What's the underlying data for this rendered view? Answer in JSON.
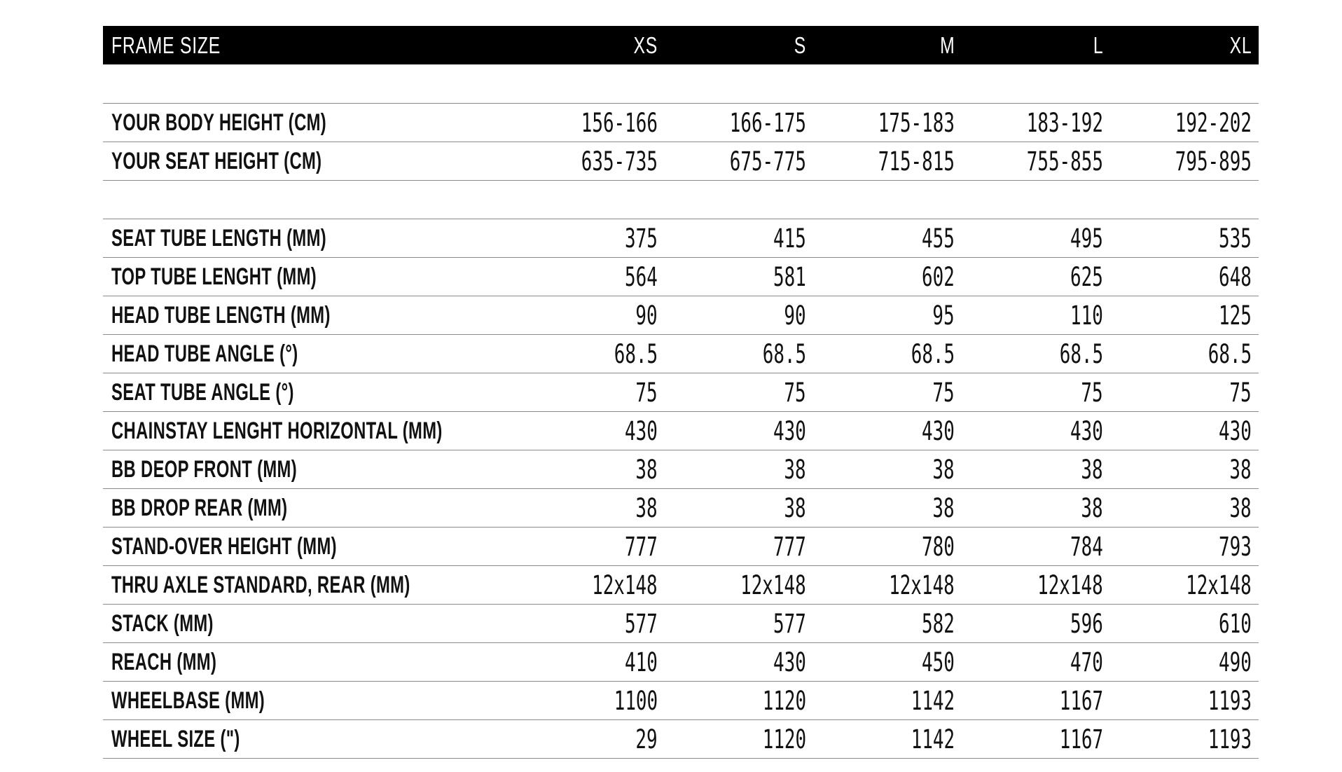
{
  "header": {
    "title": "FRAME SIZE",
    "columns": [
      "XS",
      "S",
      "M",
      "L",
      "XL"
    ],
    "bg_color": "#000000",
    "fg_color": "#ffffff"
  },
  "table": {
    "line_color": "#8a8a8a",
    "sections": [
      {
        "name": "rider-fit",
        "rows": [
          {
            "label": "YOUR BODY HEIGHT (CM)",
            "values": [
              "156-166",
              "166-175",
              "175-183",
              "183-192",
              "192-202"
            ]
          },
          {
            "label": "YOUR SEAT HEIGHT (CM)",
            "values": [
              "635-735",
              "675-775",
              "715-815",
              "755-855",
              "795-895"
            ]
          }
        ]
      },
      {
        "name": "frame-geometry",
        "rows": [
          {
            "label": "SEAT TUBE LENGTH (MM)",
            "values": [
              "375",
              "415",
              "455",
              "495",
              "535"
            ]
          },
          {
            "label": "TOP TUBE LENGHT (MM)",
            "values": [
              "564",
              "581",
              "602",
              "625",
              "648"
            ]
          },
          {
            "label": "HEAD TUBE LENGTH (MM)",
            "values": [
              "90",
              "90",
              "95",
              "110",
              "125"
            ]
          },
          {
            "label": "HEAD TUBE ANGLE (°)",
            "values": [
              "68.5",
              "68.5",
              "68.5",
              "68.5",
              "68.5"
            ]
          },
          {
            "label": "SEAT TUBE ANGLE (°)",
            "values": [
              "75",
              "75",
              "75",
              "75",
              "75"
            ]
          },
          {
            "label": "CHAINSTAY LENGHT HORIZONTAL (MM)",
            "values": [
              "430",
              "430",
              "430",
              "430",
              "430"
            ]
          },
          {
            "label": "BB DEOP FRONT (MM)",
            "values": [
              "38",
              "38",
              "38",
              "38",
              "38"
            ]
          },
          {
            "label": "BB DROP REAR (MM)",
            "values": [
              "38",
              "38",
              "38",
              "38",
              "38"
            ]
          },
          {
            "label": "STAND-OVER HEIGHT (MM)",
            "values": [
              "777",
              "777",
              "780",
              "784",
              "793"
            ]
          },
          {
            "label": "THRU AXLE STANDARD, REAR (MM)",
            "values": [
              "12x148",
              "12x148",
              "12x148",
              "12x148",
              "12x148"
            ]
          },
          {
            "label": "STACK (MM)",
            "values": [
              "577",
              "577",
              "582",
              "596",
              "610"
            ]
          },
          {
            "label": "REACH (MM)",
            "values": [
              "410",
              "430",
              "450",
              "470",
              "490"
            ]
          },
          {
            "label": "WHEELBASE (MM)",
            "values": [
              "1100",
              "1120",
              "1142",
              "1167",
              "1193"
            ]
          },
          {
            "label": "WHEEL SIZE (\")",
            "values": [
              "29",
              "1120",
              "1142",
              "1167",
              "1193"
            ]
          }
        ]
      }
    ]
  }
}
